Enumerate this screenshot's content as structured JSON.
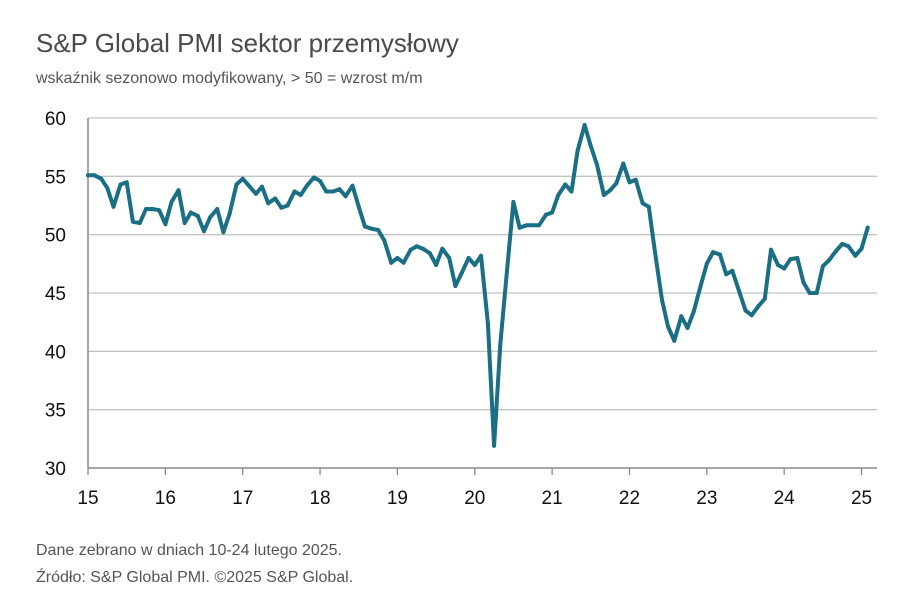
{
  "chart_data": {
    "type": "line",
    "title": "S&P Global PMI sektor przemysłowy",
    "subtitle": "wskaźnik sezonowo modyfikowany, > 50 = wzrost m/m",
    "xlabel": "",
    "ylabel": "",
    "xlim": [
      2015,
      2025.2
    ],
    "ylim": [
      30,
      60
    ],
    "yticks": [
      30,
      35,
      40,
      45,
      50,
      55,
      60
    ],
    "xticks": [
      {
        "value": 2015,
        "label": "15"
      },
      {
        "value": 2016,
        "label": "16"
      },
      {
        "value": 2017,
        "label": "17"
      },
      {
        "value": 2018,
        "label": "18"
      },
      {
        "value": 2019,
        "label": "19"
      },
      {
        "value": 2020,
        "label": "20"
      },
      {
        "value": 2021,
        "label": "21"
      },
      {
        "value": 2022,
        "label": "22"
      },
      {
        "value": 2023,
        "label": "23"
      },
      {
        "value": 2024,
        "label": "24"
      },
      {
        "value": 2025,
        "label": "25"
      }
    ],
    "grid": true,
    "color": "#1a6f84",
    "series": [
      {
        "name": "PMI",
        "x": [
          2015.0,
          2015.08,
          2015.17,
          2015.25,
          2015.33,
          2015.42,
          2015.5,
          2015.58,
          2015.67,
          2015.75,
          2015.83,
          2015.92,
          2016.0,
          2016.08,
          2016.17,
          2016.25,
          2016.33,
          2016.42,
          2016.5,
          2016.58,
          2016.67,
          2016.75,
          2016.83,
          2016.92,
          2017.0,
          2017.08,
          2017.17,
          2017.25,
          2017.33,
          2017.42,
          2017.5,
          2017.58,
          2017.67,
          2017.75,
          2017.83,
          2017.92,
          2018.0,
          2018.08,
          2018.17,
          2018.25,
          2018.33,
          2018.42,
          2018.5,
          2018.58,
          2018.67,
          2018.75,
          2018.83,
          2018.92,
          2019.0,
          2019.08,
          2019.17,
          2019.25,
          2019.33,
          2019.42,
          2019.5,
          2019.58,
          2019.67,
          2019.75,
          2019.83,
          2019.92,
          2020.0,
          2020.08,
          2020.17,
          2020.25,
          2020.33,
          2020.42,
          2020.5,
          2020.58,
          2020.67,
          2020.75,
          2020.83,
          2020.92,
          2021.0,
          2021.08,
          2021.17,
          2021.25,
          2021.33,
          2021.42,
          2021.5,
          2021.58,
          2021.67,
          2021.75,
          2021.83,
          2021.92,
          2022.0,
          2022.08,
          2022.17,
          2022.25,
          2022.33,
          2022.42,
          2022.5,
          2022.58,
          2022.67,
          2022.75,
          2022.83,
          2022.92,
          2023.0,
          2023.08,
          2023.17,
          2023.25,
          2023.33,
          2023.42,
          2023.5,
          2023.58,
          2023.67,
          2023.75,
          2023.83,
          2023.92,
          2024.0,
          2024.08,
          2024.17,
          2024.25,
          2024.33,
          2024.42,
          2024.5,
          2024.58,
          2024.67,
          2024.75,
          2024.83,
          2024.92,
          2025.0,
          2025.08
        ],
        "values": [
          55.1,
          55.1,
          54.8,
          54.0,
          52.4,
          54.3,
          54.5,
          51.1,
          51.0,
          52.2,
          52.2,
          52.1,
          50.9,
          52.8,
          53.8,
          51.0,
          51.9,
          51.6,
          50.3,
          51.5,
          52.2,
          50.2,
          51.8,
          54.3,
          54.8,
          54.2,
          53.5,
          54.1,
          52.7,
          53.1,
          52.3,
          52.5,
          53.7,
          53.4,
          54.2,
          54.9,
          54.6,
          53.7,
          53.7,
          53.9,
          53.3,
          54.2,
          52.4,
          50.7,
          50.5,
          50.4,
          49.5,
          47.6,
          48.0,
          47.6,
          48.7,
          49.0,
          48.8,
          48.4,
          47.4,
          48.8,
          48.0,
          45.6,
          46.7,
          48.0,
          47.4,
          48.2,
          42.4,
          31.9,
          40.6,
          47.2,
          52.8,
          50.6,
          50.8,
          50.8,
          50.8,
          51.7,
          51.9,
          53.4,
          54.3,
          53.7,
          57.2,
          59.4,
          57.6,
          56.0,
          53.4,
          53.8,
          54.4,
          56.1,
          54.5,
          54.7,
          52.7,
          52.4,
          48.5,
          44.4,
          42.1,
          40.9,
          43.0,
          42.0,
          43.4,
          45.6,
          47.5,
          48.5,
          48.3,
          46.6,
          46.9,
          45.1,
          43.5,
          43.1,
          43.9,
          44.5,
          48.7,
          47.4,
          47.1,
          47.9,
          48.0,
          45.9,
          45.0,
          45.0,
          47.3,
          47.8,
          48.6,
          49.2,
          49.0,
          48.2,
          48.8,
          50.6
        ]
      }
    ]
  },
  "footer": {
    "note": "Dane zebrano w dniach 10-24 lutego 2025.",
    "source": "Źródło: S&P Global PMI. ©2025 S&P Global."
  }
}
